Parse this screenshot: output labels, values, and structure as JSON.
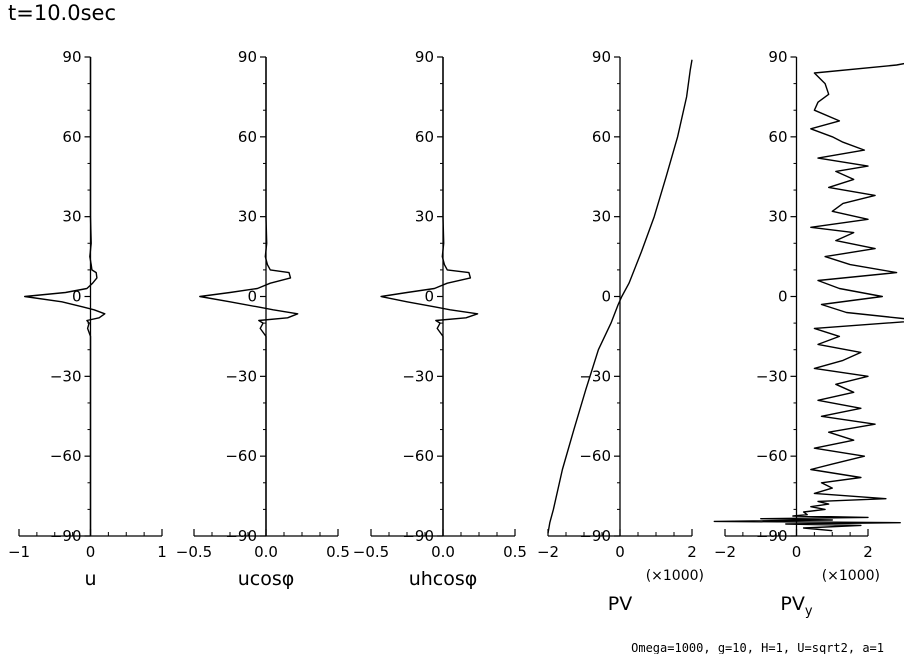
{
  "header": {
    "title": "t=10.0sec"
  },
  "footer": {
    "params": "Omega=1000, g=10, H=1, U=sqrt2, a=1"
  },
  "chart_data": [
    {
      "type": "line",
      "xlabel": "u",
      "xlim": [
        -1,
        1
      ],
      "x_ticks": [
        -1,
        0,
        1
      ],
      "x_tick_labels": [
        "−1",
        "0",
        "1"
      ],
      "ylim": [
        -90,
        90
      ],
      "y_ticks": [
        90,
        60,
        30,
        0,
        -30,
        -60,
        -90
      ],
      "grid": false,
      "series": [
        {
          "x": [
            0,
            0,
            0,
            0,
            0.01,
            -0.01,
            0.01,
            0.02,
            0.08,
            0.09,
            0.03,
            -0.05,
            -0.35,
            -0.92,
            -0.4,
            -0.1,
            0.05,
            0.2,
            0.12,
            -0.05,
            -0.02,
            -0.04,
            0,
            0,
            0,
            0,
            0
          ],
          "y": [
            90,
            60,
            40,
            30,
            20,
            15,
            12,
            10,
            9,
            7,
            5,
            3,
            1.5,
            0,
            -2,
            -4,
            -5,
            -6.5,
            -8,
            -9,
            -10,
            -12,
            -15,
            -20,
            -30,
            -60,
            -90
          ]
        }
      ]
    },
    {
      "type": "line",
      "xlabel": "ucosφ",
      "xlim": [
        -0.5,
        0.5
      ],
      "x_ticks": [
        -0.5,
        0,
        0.5
      ],
      "x_tick_labels": [
        "−0.5",
        "0.0",
        "0.5"
      ],
      "ylim": [
        -90,
        90
      ],
      "y_ticks": [
        90,
        60,
        30,
        0,
        -30,
        -60,
        -90
      ],
      "grid": false,
      "series": [
        {
          "x": [
            0,
            0,
            0,
            0,
            0.005,
            -0.005,
            0.01,
            0.03,
            0.16,
            0.17,
            0.03,
            -0.06,
            -0.25,
            -0.46,
            -0.25,
            -0.05,
            0.05,
            0.22,
            0.15,
            -0.05,
            -0.02,
            -0.04,
            0,
            0,
            0,
            0,
            0
          ],
          "y": [
            90,
            60,
            40,
            30,
            20,
            15,
            12,
            10,
            9,
            7,
            5,
            3,
            1.5,
            0,
            -2,
            -4,
            -5,
            -6.5,
            -8,
            -9,
            -10,
            -12,
            -15,
            -20,
            -30,
            -60,
            -90
          ]
        }
      ]
    },
    {
      "type": "line",
      "xlabel": "uhcosφ",
      "xlim": [
        -0.5,
        0.5
      ],
      "x_ticks": [
        -0.5,
        0,
        0.5
      ],
      "x_tick_labels": [
        "−0.5",
        "0.0",
        "0.5"
      ],
      "ylim": [
        -90,
        90
      ],
      "y_ticks": [
        90,
        60,
        30,
        0,
        -30,
        -60,
        -90
      ],
      "grid": false,
      "series": [
        {
          "x": [
            0,
            0,
            0,
            0,
            0.005,
            -0.005,
            0.01,
            0.03,
            0.18,
            0.19,
            0.03,
            -0.06,
            -0.25,
            -0.43,
            -0.25,
            -0.05,
            0.05,
            0.24,
            0.16,
            -0.05,
            -0.02,
            -0.04,
            0,
            0,
            0,
            0,
            0
          ],
          "y": [
            90,
            60,
            40,
            30,
            20,
            15,
            12,
            10,
            9,
            7,
            5,
            3,
            1.5,
            0,
            -2,
            -4,
            -5,
            -6.5,
            -8,
            -9,
            -10,
            -12,
            -15,
            -20,
            -30,
            -60,
            -90
          ]
        }
      ]
    },
    {
      "type": "line",
      "xlabel": "PV",
      "x_multiplier": "(×1000)",
      "xlim": [
        -2,
        2
      ],
      "x_ticks": [
        -2,
        0,
        2
      ],
      "x_tick_labels": [
        "−2",
        "0",
        "2"
      ],
      "ylim": [
        -90,
        90
      ],
      "y_ticks": [
        90,
        60,
        30,
        0,
        -30,
        -60,
        -90
      ],
      "grid": false,
      "series": [
        {
          "x": [
            2.0,
            1.95,
            1.85,
            1.6,
            1.28,
            0.95,
            0.6,
            0.25,
            0.05,
            -0.05,
            -0.25,
            -0.6,
            -0.95,
            -1.28,
            -1.6,
            -1.85,
            -1.95,
            -2.0
          ],
          "y": [
            89,
            85,
            75,
            60,
            45,
            30,
            17,
            5,
            0,
            -3,
            -10,
            -20,
            -35,
            -50,
            -65,
            -80,
            -85,
            -89
          ]
        }
      ]
    },
    {
      "type": "line",
      "xlabel": "PV",
      "xlabel_subscript": "y",
      "x_multiplier": "(×1000)",
      "xlim": [
        -2,
        2
      ],
      "x_ticks": [
        -2,
        0,
        2
      ],
      "x_tick_labels": [
        "−2",
        "0",
        "2"
      ],
      "ylim": [
        -90,
        90
      ],
      "y_ticks": [
        90,
        60,
        30,
        0,
        -30,
        -60,
        -90
      ],
      "grid": false,
      "series": [
        {
          "x": [
            3.2,
            2.8,
            0.5,
            0.8,
            0.9,
            0.6,
            0.5,
            1.2,
            0.4,
            1.0,
            1.3,
            1.9,
            0.6,
            2.0,
            1.1,
            1.6,
            0.9,
            2.2,
            1.3,
            1.0,
            2.0,
            0.4,
            1.6,
            1.1,
            2.2,
            0.8,
            1.5,
            2.8,
            0.6,
            1.2,
            2.4,
            0.7,
            1.4,
            3.5,
            0.5,
            1.2,
            0.6,
            1.8,
            1.3,
            0.5,
            2.0,
            1.1,
            1.6,
            0.6,
            1.8,
            0.7,
            2.2,
            0.9,
            1.6,
            0.5,
            1.9,
            1.0,
            0.4,
            1.8,
            0.7,
            1.0,
            0.5,
            2.5,
            0.6,
            0.9,
            0.4,
            0.8,
            0.2,
            0.3,
            -0.1,
            2.0,
            -1.0,
            1.0,
            -2.3,
            2.9,
            -0.3,
            1.8,
            0.2,
            1.0
          ],
          "y": [
            88,
            87,
            84,
            80,
            76,
            73,
            70,
            66,
            63,
            60,
            58,
            55,
            52,
            49,
            47,
            44,
            41,
            38,
            35,
            32,
            29,
            26,
            24,
            21,
            18,
            15,
            12,
            9,
            6,
            3,
            0,
            -3,
            -6,
            -9,
            -12,
            -15,
            -18,
            -21,
            -24,
            -27,
            -30,
            -33,
            -36,
            -39,
            -42,
            -45,
            -48,
            -51,
            -54,
            -57,
            -60,
            -63,
            -65,
            -68,
            -70,
            -72,
            -74,
            -76,
            -77,
            -78,
            -79,
            -80,
            -81,
            -82,
            -82.5,
            -83,
            -83.5,
            -84,
            -84.5,
            -85,
            -85.5,
            -86,
            -87,
            -88
          ]
        }
      ]
    }
  ]
}
